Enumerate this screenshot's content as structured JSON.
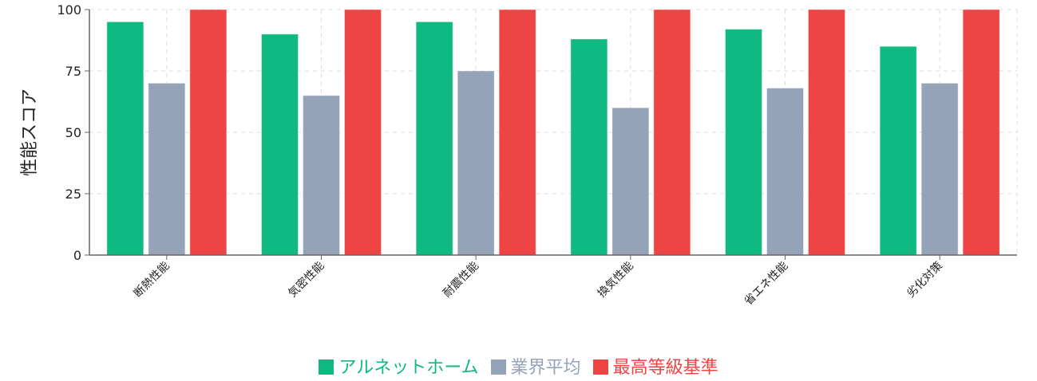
{
  "chart_data": {
    "type": "bar",
    "title": "",
    "xlabel": "",
    "ylabel": "性能スコア",
    "ylim": [
      0,
      100
    ],
    "yticks": [
      0,
      25,
      50,
      75,
      100
    ],
    "grid": true,
    "legend_position": "bottom",
    "categories": [
      "断熱性能",
      "気密性能",
      "耐震性能",
      "換気性能",
      "省エネ性能",
      "劣化対策"
    ],
    "series": [
      {
        "name": "アルネットホーム",
        "color": "#10b981",
        "values": [
          95,
          90,
          95,
          88,
          92,
          85
        ]
      },
      {
        "name": "業界平均",
        "color": "#94a3b8",
        "values": [
          70,
          65,
          75,
          60,
          68,
          70
        ]
      },
      {
        "name": "最高等級基準",
        "color": "#ef4444",
        "values": [
          100,
          100,
          100,
          100,
          100,
          100
        ]
      }
    ]
  },
  "legend": {
    "items": [
      {
        "label": "アルネットホーム",
        "color": "#10b981"
      },
      {
        "label": "業界平均",
        "color": "#94a3b8"
      },
      {
        "label": "最高等級基準",
        "color": "#ef4444"
      }
    ]
  },
  "axis": {
    "ylabel": "性能スコア"
  }
}
